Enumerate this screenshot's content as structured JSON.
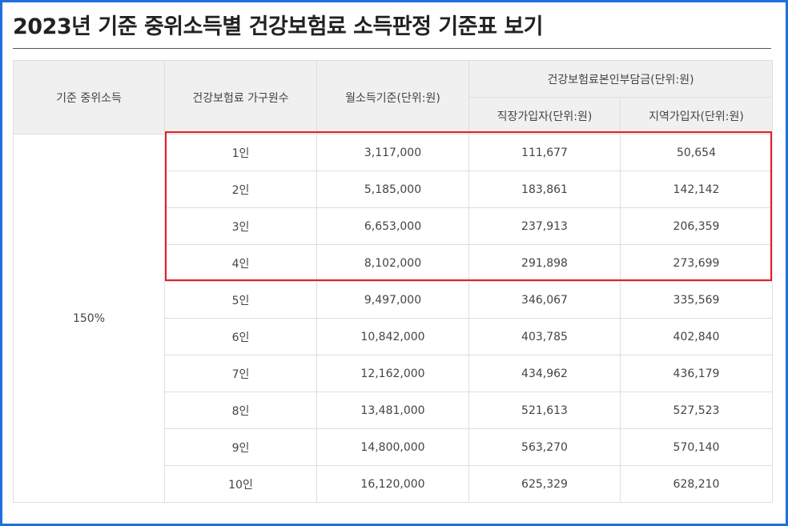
{
  "title": "2023년 기준 중위소득별 건강보험료 소득판정 기준표 보기",
  "table": {
    "headers": {
      "median_income": "기준 중위소득",
      "household_size": "건강보험료 가구원수",
      "monthly_income": "월소득기준(단위:원)",
      "premium_group": "건강보험료본인부담금(단위:원)",
      "employee": "직장가입자(단위:원)",
      "regional": "지역가입자(단위:원)"
    },
    "median_value": "150%",
    "rows": [
      {
        "size": "1인",
        "monthly": "3,117,000",
        "employee": "111,677",
        "regional": "50,654"
      },
      {
        "size": "2인",
        "monthly": "5,185,000",
        "employee": "183,861",
        "regional": "142,142"
      },
      {
        "size": "3인",
        "monthly": "6,653,000",
        "employee": "237,913",
        "regional": "206,359"
      },
      {
        "size": "4인",
        "monthly": "8,102,000",
        "employee": "291,898",
        "regional": "273,699"
      },
      {
        "size": "5인",
        "monthly": "9,497,000",
        "employee": "346,067",
        "regional": "335,569"
      },
      {
        "size": "6인",
        "monthly": "10,842,000",
        "employee": "403,785",
        "regional": "402,840"
      },
      {
        "size": "7인",
        "monthly": "12,162,000",
        "employee": "434,962",
        "regional": "436,179"
      },
      {
        "size": "8인",
        "monthly": "13,481,000",
        "employee": "521,613",
        "regional": "527,523"
      },
      {
        "size": "9인",
        "monthly": "14,800,000",
        "employee": "563,270",
        "regional": "570,140"
      },
      {
        "size": "10인",
        "monthly": "16,120,000",
        "employee": "625,329",
        "regional": "628,210"
      }
    ]
  },
  "colors": {
    "frame_border": "#1e6fd9",
    "highlight_box": "#e41e26",
    "header_bg": "#f0f0f0"
  }
}
